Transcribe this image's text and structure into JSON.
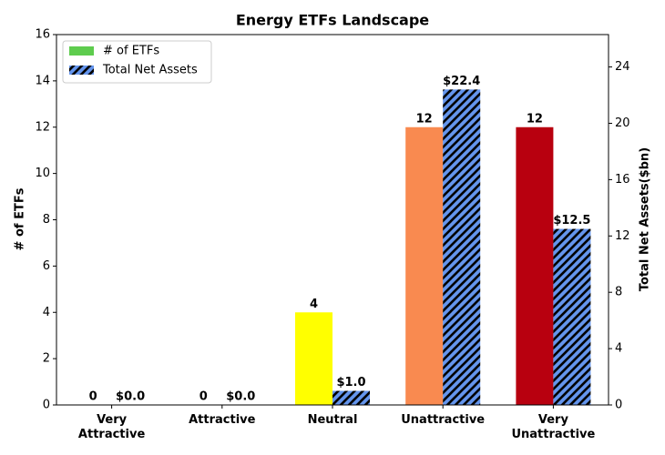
{
  "chart_data": {
    "type": "bar",
    "title": "Energy ETFs Landscape",
    "categories": [
      "Very Attractive",
      "Attractive",
      "Neutral",
      "Unattractive",
      "Very Unattractive"
    ],
    "ylabel": "# of ETFs",
    "y2label": "Total Net Assets($bn)",
    "ylim": [
      0,
      16
    ],
    "yticks": [
      0,
      2,
      4,
      6,
      8,
      10,
      12,
      14,
      16
    ],
    "y2lim": [
      0,
      26.3
    ],
    "y2ticks": [
      0,
      4,
      8,
      12,
      16,
      20,
      24
    ],
    "legend": "upper left",
    "series": [
      {
        "name": "# of ETFs",
        "color": "#5ecc4e",
        "colors": [
          "#5ecc4e",
          "#aadd55",
          "#ffff00",
          "#f98a50",
          "#b8000f"
        ],
        "values": [
          0,
          0,
          4,
          12,
          12
        ]
      },
      {
        "name": "Total Net Assets",
        "color": "#6495ed",
        "hatch": true,
        "axis": "y2",
        "values": [
          0.0,
          0.0,
          1.0,
          22.4,
          12.5
        ],
        "value_labels": [
          "$0.0",
          "$0.0",
          "$1.0",
          "$22.4",
          "$12.5"
        ]
      }
    ]
  }
}
